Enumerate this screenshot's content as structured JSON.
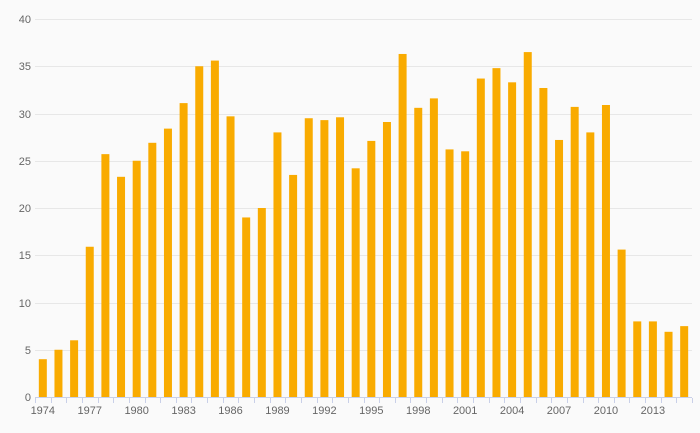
{
  "chart": {
    "background_color": "#fafafa",
    "bar_color": "#f9ab00",
    "gridline_color": "#e7e7e7",
    "axis_line_color": "#c9d0e8",
    "label_color": "#666666"
  },
  "chart_data": {
    "type": "bar",
    "title": "",
    "xlabel": "",
    "ylabel": "",
    "legend": "none",
    "grid": "horizontal",
    "ylim": [
      0,
      40
    ],
    "yticks": [
      0,
      5,
      10,
      15,
      20,
      25,
      30,
      35,
      40
    ],
    "xtick_labels": [
      "1974",
      "1977",
      "1980",
      "1983",
      "1986",
      "1989",
      "1992",
      "1995",
      "1998",
      "2001",
      "2004",
      "2007",
      "2010",
      "2013"
    ],
    "categories": [
      "1974",
      "1975",
      "1976",
      "1977",
      "1978",
      "1979",
      "1980",
      "1981",
      "1982",
      "1983",
      "1984",
      "1985",
      "1986",
      "1987",
      "1988",
      "1989",
      "1990",
      "1991",
      "1992",
      "1993",
      "1994",
      "1995",
      "1996",
      "1997",
      "1998",
      "1999",
      "2000",
      "2001",
      "2002",
      "2003",
      "2004",
      "2005",
      "2006",
      "2007",
      "2008",
      "2009",
      "2010",
      "2011",
      "2012",
      "2013",
      "2014",
      "2015"
    ],
    "values": [
      4,
      5,
      6,
      15.9,
      25.7,
      23.3,
      25,
      26.9,
      28.4,
      31.1,
      35,
      35.6,
      29.7,
      19,
      20,
      28,
      23.5,
      29.5,
      29.3,
      29.6,
      24.2,
      27.1,
      29.1,
      36.3,
      30.6,
      31.6,
      26.2,
      26,
      33.7,
      34.8,
      33.3,
      36.5,
      32.7,
      27.2,
      30.7,
      28,
      30.9,
      15.6,
      8,
      8,
      6.9,
      7.5
    ]
  }
}
